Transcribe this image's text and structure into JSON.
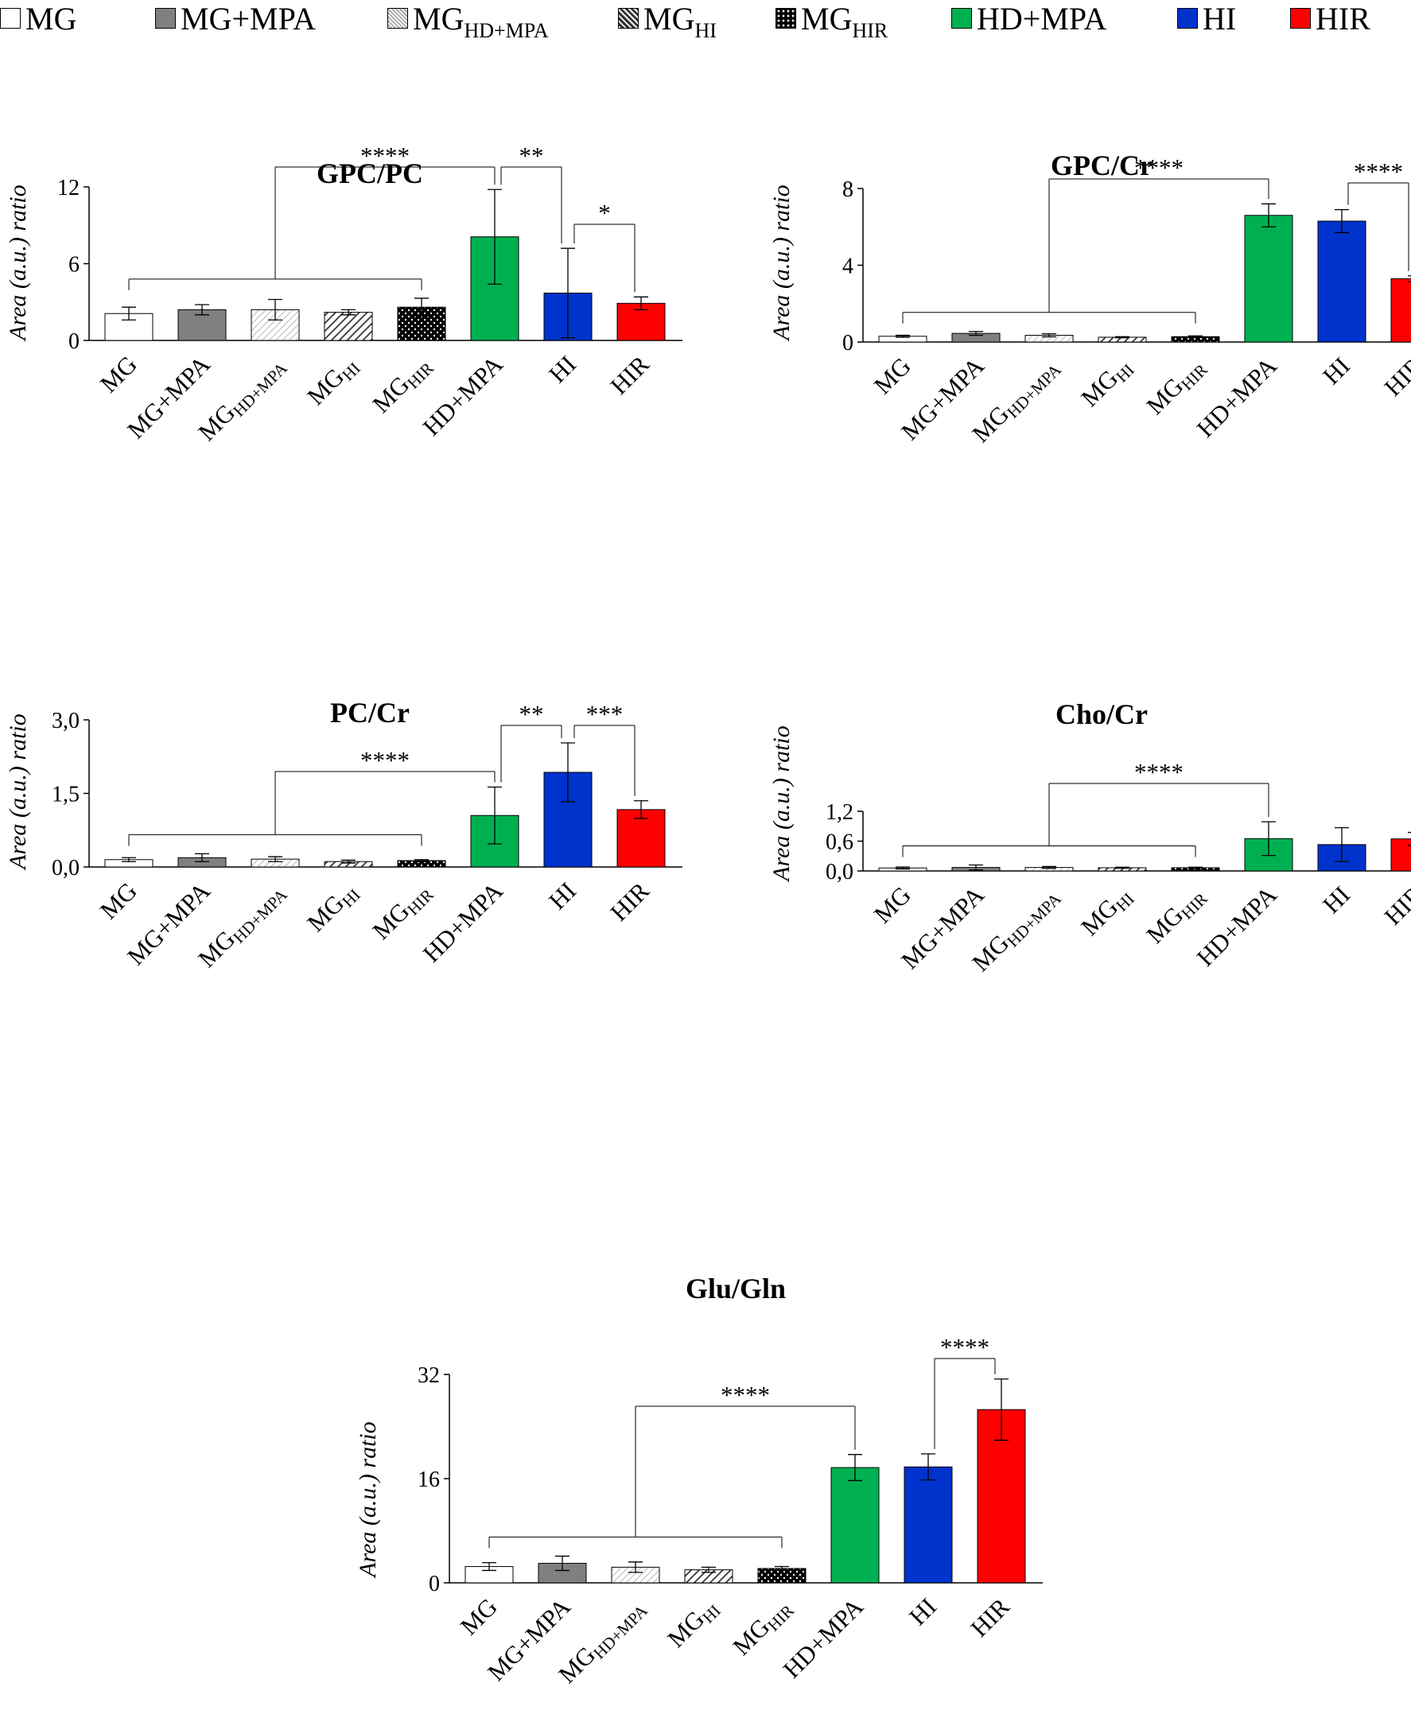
{
  "legend": [
    {
      "base": "MG",
      "sub": "",
      "fill": "white"
    },
    {
      "base": "MG+MPA",
      "sub": "",
      "fill": "gray"
    },
    {
      "base": "MG",
      "sub": "HD+MPA",
      "fill": "diag-light"
    },
    {
      "base": "MG",
      "sub": "HI",
      "fill": "diag-dark"
    },
    {
      "base": "MG",
      "sub": "HIR",
      "fill": "dots"
    },
    {
      "base": "HD+MPA",
      "sub": "",
      "fill": "green"
    },
    {
      "base": "HI",
      "sub": "",
      "fill": "blue"
    },
    {
      "base": "HIR",
      "sub": "",
      "fill": "red"
    }
  ],
  "colors": {
    "white": "#ffffff",
    "gray": "#808080",
    "green": "#00b050",
    "blue": "#0033cc",
    "red": "#ff0000",
    "black": "#000000"
  },
  "chart_data": [
    {
      "type": "bar",
      "title": "GPC/PC",
      "ylabel": "Area (a.u.) ratio",
      "xlabel": "",
      "ylim": [
        0,
        12
      ],
      "yticks": [
        0,
        6,
        12
      ],
      "ytick_labels": [
        "0",
        "6",
        "12"
      ],
      "categories": [
        {
          "base": "MG",
          "sub": ""
        },
        {
          "base": "MG+MPA",
          "sub": ""
        },
        {
          "base": "MG",
          "sub": "HD+MPA"
        },
        {
          "base": "MG",
          "sub": "HI"
        },
        {
          "base": "MG",
          "sub": "HIR"
        },
        {
          "base": "HD+MPA",
          "sub": ""
        },
        {
          "base": "HI",
          "sub": ""
        },
        {
          "base": "HIR",
          "sub": ""
        }
      ],
      "values": [
        2.1,
        2.4,
        2.4,
        2.2,
        2.6,
        8.1,
        3.7,
        2.9
      ],
      "errors": [
        0.5,
        0.4,
        0.8,
        0.2,
        0.7,
        3.7,
        3.5,
        0.5
      ],
      "significance": [
        {
          "label": "****",
          "from": [
            0,
            4
          ],
          "to": 5
        },
        {
          "label": "**",
          "from": 5,
          "to": 6
        },
        {
          "label": "*",
          "from": 6,
          "to": 7
        }
      ]
    },
    {
      "type": "bar",
      "title": "GPC/Cr",
      "ylabel": "Area (a.u.) ratio",
      "xlabel": "",
      "ylim": [
        0,
        8
      ],
      "yticks": [
        0,
        4,
        8
      ],
      "ytick_labels": [
        "0",
        "4",
        "8"
      ],
      "categories": [
        {
          "base": "MG",
          "sub": ""
        },
        {
          "base": "MG+MPA",
          "sub": ""
        },
        {
          "base": "MG",
          "sub": "HD+MPA"
        },
        {
          "base": "MG",
          "sub": "HI"
        },
        {
          "base": "MG",
          "sub": "HIR"
        },
        {
          "base": "HD+MPA",
          "sub": ""
        },
        {
          "base": "HI",
          "sub": ""
        },
        {
          "base": "HIR",
          "sub": ""
        }
      ],
      "values": [
        0.3,
        0.45,
        0.35,
        0.25,
        0.28,
        6.6,
        6.3,
        3.3
      ],
      "errors": [
        0.05,
        0.1,
        0.08,
        0.03,
        0.04,
        0.6,
        0.6,
        0.15
      ],
      "significance": [
        {
          "label": "****",
          "from": [
            0,
            4
          ],
          "to": 5
        },
        {
          "label": "****",
          "from": 6,
          "to": 7
        }
      ]
    },
    {
      "type": "bar",
      "title": "PC/Cr",
      "ylabel": "Area (a.u.) ratio",
      "xlabel": "",
      "ylim": [
        0,
        3
      ],
      "yticks": [
        0,
        1.5,
        3
      ],
      "ytick_labels": [
        "0,0",
        "1,5",
        "3,0"
      ],
      "categories": [
        {
          "base": "MG",
          "sub": ""
        },
        {
          "base": "MG+MPA",
          "sub": ""
        },
        {
          "base": "MG",
          "sub": "HD+MPA"
        },
        {
          "base": "MG",
          "sub": "HI"
        },
        {
          "base": "MG",
          "sub": "HIR"
        },
        {
          "base": "HD+MPA",
          "sub": ""
        },
        {
          "base": "HI",
          "sub": ""
        },
        {
          "base": "HIR",
          "sub": ""
        }
      ],
      "values": [
        0.15,
        0.19,
        0.16,
        0.11,
        0.13,
        1.05,
        1.93,
        1.17
      ],
      "errors": [
        0.04,
        0.08,
        0.05,
        0.03,
        0.02,
        0.58,
        0.6,
        0.18
      ],
      "significance": [
        {
          "label": "****",
          "from": [
            0,
            4
          ],
          "to": 5
        },
        {
          "label": "**",
          "from": 5,
          "to": 6
        },
        {
          "label": "***",
          "from": 6,
          "to": 7
        }
      ]
    },
    {
      "type": "bar",
      "title": "Cho/Cr",
      "ylabel": "Area (a.u.) ratio",
      "xlabel": "",
      "ylim": [
        0,
        1.2
      ],
      "yticks": [
        0,
        0.6,
        1.2
      ],
      "ytick_labels": [
        "0,0",
        "0,6",
        "1,2"
      ],
      "categories": [
        {
          "base": "MG",
          "sub": ""
        },
        {
          "base": "MG+MPA",
          "sub": ""
        },
        {
          "base": "MG",
          "sub": "HD+MPA"
        },
        {
          "base": "MG",
          "sub": "HI"
        },
        {
          "base": "MG",
          "sub": "HIR"
        },
        {
          "base": "HD+MPA",
          "sub": ""
        },
        {
          "base": "HI",
          "sub": ""
        },
        {
          "base": "HIR",
          "sub": ""
        }
      ],
      "values": [
        0.06,
        0.07,
        0.07,
        0.065,
        0.065,
        0.65,
        0.53,
        0.645
      ],
      "errors": [
        0.02,
        0.05,
        0.02,
        0.01,
        0.01,
        0.34,
        0.34,
        0.13
      ],
      "significance": [
        {
          "label": "****",
          "from": [
            0,
            4
          ],
          "to": 5
        }
      ]
    },
    {
      "type": "bar",
      "title": "Glu/Gln",
      "ylabel": "Area (a.u.) ratio",
      "xlabel": "",
      "ylim": [
        0,
        32
      ],
      "yticks": [
        0,
        16,
        32
      ],
      "ytick_labels": [
        "0",
        "16",
        "32"
      ],
      "categories": [
        {
          "base": "MG",
          "sub": ""
        },
        {
          "base": "MG+MPA",
          "sub": ""
        },
        {
          "base": "MG",
          "sub": "HD+MPA"
        },
        {
          "base": "MG",
          "sub": "HI"
        },
        {
          "base": "MG",
          "sub": "HIR"
        },
        {
          "base": "HD+MPA",
          "sub": ""
        },
        {
          "base": "HI",
          "sub": ""
        },
        {
          "base": "HIR",
          "sub": ""
        }
      ],
      "values": [
        2.5,
        3.0,
        2.4,
        2.0,
        2.2,
        17.7,
        17.8,
        26.6
      ],
      "errors": [
        0.6,
        1.1,
        0.8,
        0.4,
        0.3,
        2.0,
        2.0,
        4.7
      ],
      "significance": [
        {
          "label": "****",
          "from": [
            0,
            4
          ],
          "to": 5
        },
        {
          "label": "****",
          "from": 6,
          "to": 7
        }
      ]
    }
  ]
}
